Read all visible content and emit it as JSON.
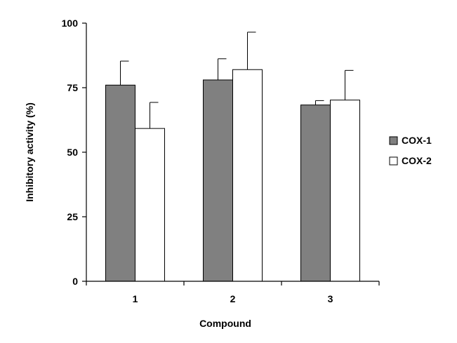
{
  "chart_data": {
    "type": "bar",
    "xlabel": "Compound",
    "ylabel": "Inhibitory activity (%)",
    "ylim": [
      0,
      100
    ],
    "yticks": [
      0,
      25,
      50,
      75,
      100
    ],
    "categories": [
      "1",
      "2",
      "3"
    ],
    "legend_position": "right",
    "grid": false,
    "error_bars": "upper",
    "series": [
      {
        "name": "COX-1",
        "color": "#808080",
        "values": [
          76,
          78,
          68.3
        ],
        "errors": [
          9.3,
          8.2,
          1.7
        ]
      },
      {
        "name": "COX-2",
        "color": "#ffffff",
        "values": [
          59.2,
          82,
          70.2
        ],
        "errors": [
          10.1,
          14.5,
          11.5
        ]
      }
    ]
  }
}
